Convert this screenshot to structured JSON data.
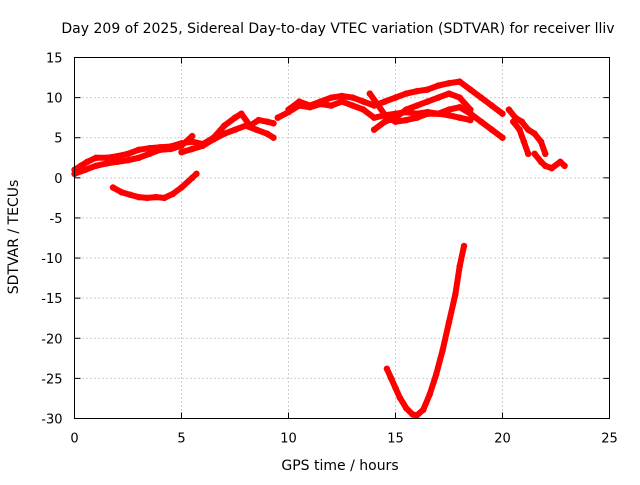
{
  "chart_data": {
    "type": "scatter",
    "title": "Day 209 of 2025, Sidereal Day-to-day VTEC variation (SDTVAR) for receiver lliv",
    "xlabel": "GPS time / hours",
    "ylabel": "SDTVAR / TECUs",
    "xlim": [
      0,
      25
    ],
    "ylim": [
      -30,
      15
    ],
    "xticks": [
      0,
      5,
      10,
      15,
      20,
      25
    ],
    "yticks": [
      15,
      10,
      5,
      0,
      -5,
      -10,
      -15,
      -20,
      -25,
      -30
    ],
    "grid": true,
    "series_color": "#ff0000",
    "series": [
      {
        "x": [
          0.0,
          0.3,
          0.6,
          1.0,
          1.5,
          2.0,
          2.5,
          3.0,
          3.5,
          4.0,
          4.5,
          5.0,
          5.5,
          6.0,
          6.5,
          7.0,
          7.5,
          7.8,
          8.2,
          8.6,
          9.0,
          9.3
        ],
        "y": [
          1.0,
          1.5,
          2.0,
          2.5,
          2.5,
          2.7,
          3.0,
          3.5,
          3.7,
          3.8,
          3.9,
          4.3,
          4.5,
          4.2,
          5.0,
          6.5,
          7.5,
          8.0,
          6.5,
          7.2,
          7.0,
          6.8
        ]
      },
      {
        "x": [
          0.0,
          0.5,
          1.0,
          1.5,
          2.0,
          2.5,
          3.0,
          3.5,
          4.0,
          4.5,
          5.0,
          5.5
        ],
        "y": [
          0.5,
          1.0,
          1.5,
          1.8,
          2.0,
          2.2,
          2.5,
          3.0,
          3.5,
          3.6,
          4.0,
          5.2
        ]
      },
      {
        "x": [
          5.0,
          5.5,
          6.0,
          6.5,
          7.0,
          7.5,
          8.0,
          8.5,
          9.0,
          9.3
        ],
        "y": [
          3.2,
          3.6,
          4.0,
          4.8,
          5.5,
          6.0,
          6.5,
          6.0,
          5.5,
          5.0
        ]
      },
      {
        "x": [
          1.8,
          2.2,
          2.6,
          3.0,
          3.4,
          3.8,
          4.2,
          4.6,
          5.0,
          5.5,
          5.7
        ],
        "y": [
          -1.2,
          -1.8,
          -2.1,
          -2.4,
          -2.5,
          -2.4,
          -2.5,
          -2.0,
          -1.2,
          0.0,
          0.5
        ]
      },
      {
        "x": [
          9.5,
          10.0,
          10.5,
          11.0,
          11.5,
          12.0,
          12.5,
          13.0,
          13.5,
          14.0,
          14.5,
          15.0,
          15.5,
          16.0,
          16.5,
          17.0,
          17.5,
          18.0,
          18.5,
          19.0,
          19.5,
          20.0
        ],
        "y": [
          7.5,
          8.2,
          9.0,
          8.8,
          9.2,
          9.0,
          9.5,
          9.0,
          8.5,
          7.5,
          7.8,
          8.0,
          8.2,
          8.0,
          8.2,
          8.0,
          8.5,
          8.8,
          8.0,
          7.0,
          6.0,
          5.0
        ]
      },
      {
        "x": [
          10.0,
          10.5,
          11.0,
          11.5,
          12.0,
          12.5,
          13.0,
          13.5,
          14.0,
          14.5,
          15.0,
          15.5,
          16.0,
          16.5,
          17.0,
          17.5,
          18.0,
          18.5,
          19.0,
          19.5,
          20.0
        ],
        "y": [
          8.5,
          9.5,
          9.0,
          9.5,
          10.0,
          10.2,
          10.0,
          9.5,
          9.0,
          9.5,
          10.0,
          10.5,
          10.8,
          11.0,
          11.5,
          11.8,
          12.0,
          11.0,
          10.0,
          9.0,
          8.0
        ]
      },
      {
        "x": [
          14.0,
          14.5,
          15.0,
          15.5,
          16.0,
          16.5,
          17.0,
          17.5,
          18.0,
          18.5
        ],
        "y": [
          6.0,
          7.0,
          7.5,
          8.5,
          9.0,
          9.5,
          10.0,
          10.5,
          10.0,
          8.5
        ]
      },
      {
        "x": [
          13.8,
          14.2,
          14.6,
          15.0,
          15.5,
          16.0,
          16.5,
          17.0,
          17.5,
          18.0,
          18.5
        ],
        "y": [
          10.5,
          9.0,
          7.5,
          7.0,
          7.2,
          7.5,
          8.0,
          8.0,
          7.8,
          7.5,
          7.2
        ]
      },
      {
        "x": [
          20.3,
          20.6,
          20.9,
          21.2,
          21.5,
          21.8,
          22.0
        ],
        "y": [
          8.5,
          7.5,
          7.0,
          6.0,
          5.5,
          4.5,
          3.0
        ]
      },
      {
        "x": [
          20.5,
          20.8,
          21.0,
          21.2
        ],
        "y": [
          7.0,
          6.0,
          4.5,
          3.0
        ]
      },
      {
        "x": [
          21.5,
          21.8,
          22.0,
          22.3,
          22.7,
          22.9
        ],
        "y": [
          3.0,
          2.0,
          1.5,
          1.2,
          2.0,
          1.5
        ]
      },
      {
        "x": [
          14.6,
          14.8,
          15.0,
          15.2,
          15.5,
          15.8,
          16.0,
          16.3,
          16.6,
          16.9,
          17.2,
          17.5,
          17.8,
          18.0,
          18.2
        ],
        "y": [
          -23.8,
          -25.0,
          -26.2,
          -27.4,
          -28.7,
          -29.5,
          -29.6,
          -28.9,
          -27.0,
          -24.5,
          -21.5,
          -18.0,
          -14.5,
          -11.0,
          -8.5
        ]
      }
    ]
  }
}
